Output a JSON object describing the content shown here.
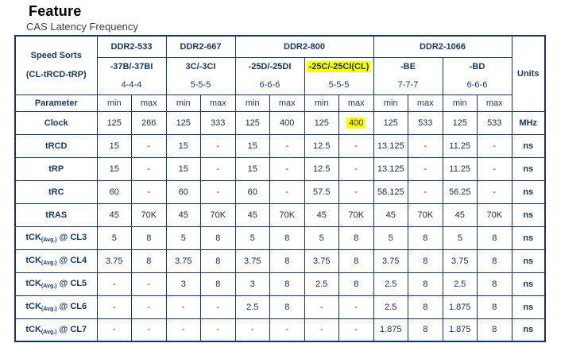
{
  "page": {
    "title": "Feature",
    "subtitle": "CAS Latency Frequency"
  },
  "colors": {
    "table_border": "#17375E",
    "header_text": "#17375E",
    "data_text": "#1c2b4a",
    "highlight": "#FFFF00"
  },
  "table": {
    "corner_header": {
      "line1": "Speed Sorts",
      "line2": "(CL-tRCD-tRP)"
    },
    "units_header": "Units",
    "parameter_header": "Parameter",
    "min_label": "min",
    "max_label": "max",
    "groups": [
      {
        "name": "DDR2-533",
        "sorts": [
          {
            "sort": "-37B/-37BI",
            "timing": "4-4-4",
            "highlight": false
          }
        ]
      },
      {
        "name": "DDR2-667",
        "sorts": [
          {
            "sort": "3C/-3CI",
            "timing": "5-5-5",
            "highlight": false
          }
        ]
      },
      {
        "name": "DDR2-800",
        "sorts": [
          {
            "sort": "-25D/-25DI",
            "timing": "6-6-6",
            "highlight": false
          },
          {
            "sort": "-25C/-25CI(CL)",
            "timing": "5-5-5",
            "highlight": true
          }
        ]
      },
      {
        "name": "DDR2-1066",
        "sorts": [
          {
            "sort": "-BE",
            "timing": "7-7-7",
            "highlight": false
          },
          {
            "sort": "-BD",
            "timing": "6-6-6",
            "highlight": false
          }
        ]
      }
    ],
    "rows": [
      {
        "label": {
          "pre": "Clock"
        },
        "unit": "MHz",
        "highlight_index": 7,
        "values": [
          "125",
          "266",
          "125",
          "333",
          "125",
          "400",
          "125",
          "400",
          "125",
          "533",
          "125",
          "533"
        ]
      },
      {
        "label": {
          "pre": "tRCD"
        },
        "unit": "ns",
        "highlight_index": null,
        "values": [
          "15",
          "-",
          "15",
          "-",
          "15",
          "-",
          "12.5",
          "-",
          "13.125",
          "-",
          "11.25",
          "-"
        ]
      },
      {
        "label": {
          "pre": "tRP"
        },
        "unit": "ns",
        "highlight_index": null,
        "values": [
          "15",
          "-",
          "15",
          "-",
          "15",
          "-",
          "12.5",
          "-",
          "13.125",
          "-",
          "11.25",
          "-"
        ]
      },
      {
        "label": {
          "pre": "tRC"
        },
        "unit": "ns",
        "highlight_index": null,
        "values": [
          "60",
          "-",
          "60",
          "-",
          "60",
          "-",
          "57.5",
          "-",
          "58.125",
          "-",
          "56.25",
          "-"
        ]
      },
      {
        "label": {
          "pre": "tRAS"
        },
        "unit": "ns",
        "highlight_index": null,
        "values": [
          "45",
          "70K",
          "45",
          "70K",
          "45",
          "70K",
          "45",
          "70K",
          "45",
          "70K",
          "45",
          "70K"
        ]
      },
      {
        "label": {
          "pre": "tCK",
          "sub": "(Avg.)",
          "post": " @ CL3"
        },
        "unit": "ns",
        "highlight_index": null,
        "values": [
          "5",
          "8",
          "5",
          "8",
          "5",
          "8",
          "5",
          "8",
          "5",
          "8",
          "5",
          "8"
        ]
      },
      {
        "label": {
          "pre": "tCK",
          "sub": "(Avg.)",
          "post": " @ CL4"
        },
        "unit": "ns",
        "highlight_index": null,
        "values": [
          "3.75",
          "8",
          "3.75",
          "8",
          "3.75",
          "8",
          "3.75",
          "8",
          "3.75",
          "8",
          "3.75",
          "8"
        ]
      },
      {
        "label": {
          "pre": "tCK",
          "sub": "(Avg.)",
          "post": " @ CL5"
        },
        "unit": "ns",
        "highlight_index": null,
        "values": [
          "-",
          "-",
          "3",
          "8",
          "3",
          "8",
          "2.5",
          "8",
          "2.5",
          "8",
          "2.5",
          "8"
        ]
      },
      {
        "label": {
          "pre": "tCK",
          "sub": "(Avg.)",
          "post": " @ CL6"
        },
        "unit": "ns",
        "highlight_index": null,
        "values": [
          "-",
          "-",
          "-",
          "-",
          "2.5",
          "8",
          "-",
          "-",
          "2.5",
          "8",
          "1.875",
          "8"
        ]
      },
      {
        "label": {
          "pre": "tCK",
          "sub": "(Avg.)",
          "post": " @ CL7"
        },
        "unit": "ns",
        "highlight_index": null,
        "values": [
          "-",
          "-",
          "-",
          "-",
          "-",
          "-",
          "-",
          "-",
          "1.875",
          "8",
          "1.875",
          "8"
        ]
      }
    ]
  }
}
